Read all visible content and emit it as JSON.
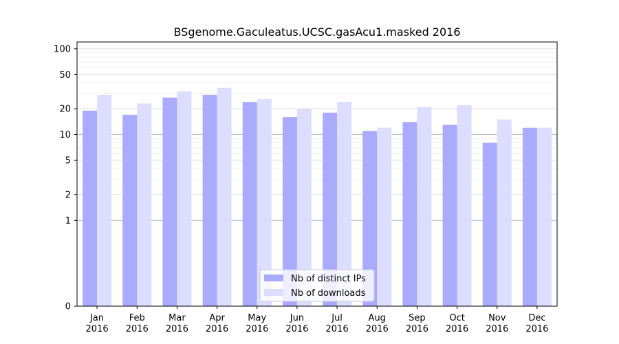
{
  "chart_data": {
    "type": "bar",
    "title": "BSgenome.Gaculeatus.UCSC.gasAcu1.masked 2016",
    "xlabel": "",
    "ylabel": "",
    "yscale": "symlog",
    "ylim": [
      0,
      120
    ],
    "yticks": [
      0,
      1,
      2,
      5,
      10,
      20,
      50,
      100
    ],
    "ytick_labels": [
      "0",
      "1",
      "2",
      "5",
      "10",
      "20",
      "50",
      "100"
    ],
    "categories": [
      [
        "Jan",
        "2016"
      ],
      [
        "Feb",
        "2016"
      ],
      [
        "Mar",
        "2016"
      ],
      [
        "Apr",
        "2016"
      ],
      [
        "May",
        "2016"
      ],
      [
        "Jun",
        "2016"
      ],
      [
        "Jul",
        "2016"
      ],
      [
        "Aug",
        "2016"
      ],
      [
        "Sep",
        "2016"
      ],
      [
        "Oct",
        "2016"
      ],
      [
        "Nov",
        "2016"
      ],
      [
        "Dec",
        "2016"
      ]
    ],
    "series": [
      {
        "name": "Nb of distinct IPs",
        "color": "#aaaaff",
        "values": [
          19,
          17,
          27,
          29,
          24,
          16,
          18,
          11,
          14,
          13,
          8,
          12
        ]
      },
      {
        "name": "Nb of downloads",
        "color": "#ddddff",
        "values": [
          29,
          23,
          32,
          35,
          26,
          20,
          24,
          12,
          21,
          22,
          15,
          12
        ]
      }
    ],
    "grid": true,
    "legend_position": "bottom-center"
  }
}
